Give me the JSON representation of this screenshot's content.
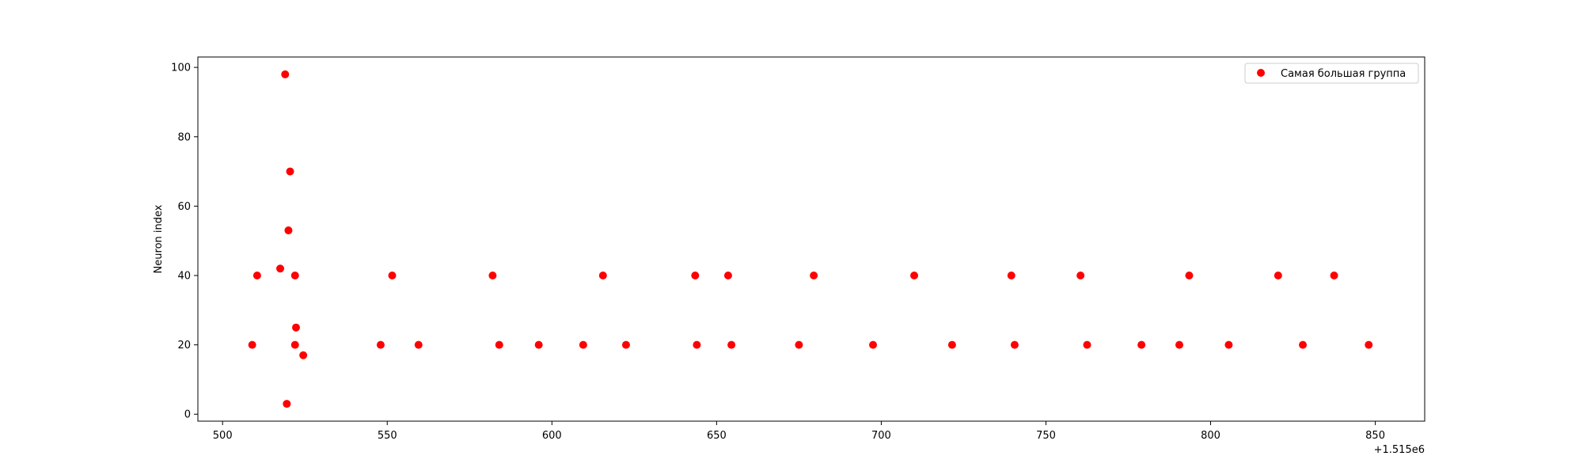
{
  "chart_data": {
    "type": "scatter",
    "xlabel": "",
    "ylabel": "Neuron index",
    "x_offset_label": "+1.515e6",
    "xlim": [
      492.5,
      865
    ],
    "ylim": [
      -2,
      103
    ],
    "x_ticks": [
      500,
      550,
      600,
      650,
      700,
      750,
      800,
      850
    ],
    "y_ticks": [
      0,
      20,
      40,
      60,
      80,
      100
    ],
    "grid": false,
    "legend_position": "top-right",
    "series": [
      {
        "name": "Самая большая группа",
        "color": "#ff0000",
        "points": [
          {
            "x": 509,
            "y": 20
          },
          {
            "x": 510.5,
            "y": 40
          },
          {
            "x": 517.5,
            "y": 42
          },
          {
            "x": 519,
            "y": 98
          },
          {
            "x": 519.5,
            "y": 3
          },
          {
            "x": 520,
            "y": 53
          },
          {
            "x": 520.5,
            "y": 70
          },
          {
            "x": 522,
            "y": 40
          },
          {
            "x": 522,
            "y": 20
          },
          {
            "x": 522.3,
            "y": 25
          },
          {
            "x": 524.5,
            "y": 17
          },
          {
            "x": 548,
            "y": 20
          },
          {
            "x": 551.5,
            "y": 40
          },
          {
            "x": 559.5,
            "y": 20
          },
          {
            "x": 582,
            "y": 40
          },
          {
            "x": 584,
            "y": 20
          },
          {
            "x": 596,
            "y": 20
          },
          {
            "x": 609.5,
            "y": 20
          },
          {
            "x": 615.5,
            "y": 40
          },
          {
            "x": 622.5,
            "y": 20
          },
          {
            "x": 643.5,
            "y": 40
          },
          {
            "x": 644,
            "y": 20
          },
          {
            "x": 653.5,
            "y": 40
          },
          {
            "x": 654.5,
            "y": 20
          },
          {
            "x": 675,
            "y": 20
          },
          {
            "x": 679.5,
            "y": 40
          },
          {
            "x": 697.5,
            "y": 20
          },
          {
            "x": 710,
            "y": 40
          },
          {
            "x": 721.5,
            "y": 20
          },
          {
            "x": 739.5,
            "y": 40
          },
          {
            "x": 740.5,
            "y": 20
          },
          {
            "x": 760.5,
            "y": 40
          },
          {
            "x": 762.5,
            "y": 20
          },
          {
            "x": 779,
            "y": 20
          },
          {
            "x": 790.5,
            "y": 20
          },
          {
            "x": 793.5,
            "y": 40
          },
          {
            "x": 805.5,
            "y": 20
          },
          {
            "x": 820.5,
            "y": 40
          },
          {
            "x": 828,
            "y": 20
          },
          {
            "x": 837.5,
            "y": 40
          },
          {
            "x": 848,
            "y": 20
          }
        ]
      }
    ]
  }
}
